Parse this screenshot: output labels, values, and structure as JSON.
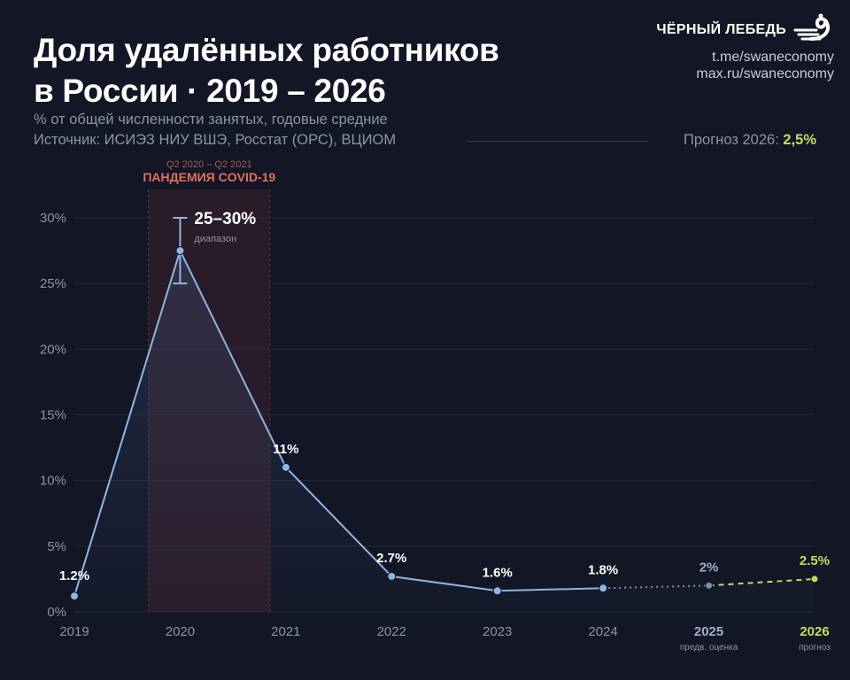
{
  "header": {
    "title_line1": "Доля удалённых работников",
    "title_line2": "в России · 2019 – 2026",
    "subtitle": "% от общей численности занятых, годовые средние",
    "source": "Источник: ИСИЭЗ НИУ ВШЭ, Росстат (ОРС), ВЦИОМ",
    "forecast_label": "Прогноз 2026:",
    "forecast_value": "2,5%"
  },
  "brand": {
    "name": "ЧЁРНЫЙ ЛЕБЕДЬ",
    "link1": "t.me/swaneconomy",
    "link2": "max.ru/swaneconomy",
    "logo_icon": "swan-logo-icon"
  },
  "colors": {
    "background": "#121625",
    "line": "#8fb6e3",
    "forecast": "#c3df5e",
    "estimate": "#7c8fb0",
    "pandemic_label": "#e06f62",
    "pandemic_band": "#2a1b28",
    "grid": "#262b3c",
    "axis_text": "#8e93a6"
  },
  "chart_data": {
    "type": "line",
    "title": "Доля удалённых работников в России · 2019 – 2026",
    "ylim": [
      0,
      30
    ],
    "y_ticks": [
      0,
      5,
      10,
      15,
      20,
      25,
      30
    ],
    "y_tick_labels": [
      "0%",
      "5%",
      "10%",
      "15%",
      "20%",
      "25%",
      "30%"
    ],
    "categories": [
      "2019",
      "2020",
      "2021",
      "2022",
      "2023",
      "2024",
      "2025",
      "2026"
    ],
    "category_sublabels": [
      "",
      "",
      "",
      "",
      "",
      "",
      "предв. оценка",
      "прогноз"
    ],
    "series": [
      {
        "values": [
          1.2,
          27.5,
          11,
          2.7,
          1.6,
          1.8,
          2,
          2.5
        ],
        "labels": [
          "1.2%",
          "25–30%",
          "11%",
          "2.7%",
          "1.6%",
          "1.8%",
          "2%",
          "2.5%"
        ],
        "segment_styles": [
          "solid",
          "solid",
          "solid",
          "solid",
          "solid",
          "dotted",
          "dashed"
        ]
      }
    ],
    "range_2020": {
      "low": 25,
      "high": 30,
      "label": "25–30%",
      "sublabel": "диапазон"
    },
    "annotations": [
      {
        "from_x": "2019",
        "to_x": "2021",
        "label": "ПАНДЕМИЯ COVID-19",
        "sublabel": "Q2 2020 – Q2 2021"
      }
    ],
    "grid": true
  }
}
